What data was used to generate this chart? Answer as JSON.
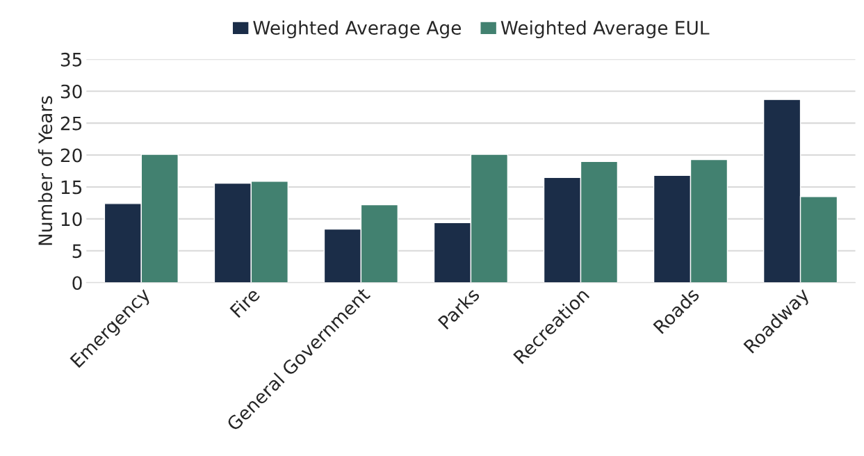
{
  "chart_data": {
    "type": "bar",
    "ylabel": "Number of Years",
    "categories": [
      "Emergency",
      "Fire",
      "General Government",
      "Parks",
      "Recreation",
      "Roads",
      "Roadway"
    ],
    "series": [
      {
        "name": "Weighted Average Age",
        "color": "#1b2d48",
        "values": [
          12.4,
          15.6,
          8.4,
          9.4,
          16.5,
          16.8,
          28.7
        ]
      },
      {
        "name": "Weighted Average EUL",
        "color": "#428170",
        "values": [
          20.1,
          15.9,
          12.2,
          20.1,
          19.0,
          19.3,
          13.5
        ]
      }
    ],
    "ylim": [
      0,
      35
    ],
    "yticks": [
      0,
      5,
      10,
      15,
      20,
      25,
      30,
      35
    ],
    "grid": "y",
    "legend": "top"
  }
}
